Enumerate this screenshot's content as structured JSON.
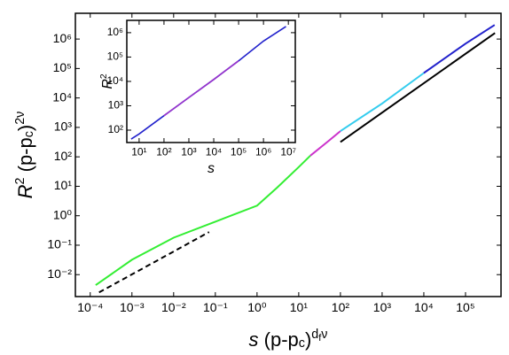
{
  "chart_data": [
    {
      "type": "line",
      "xlog": true,
      "ylog": true,
      "xlim": [
        4.4e-05,
        710000
      ],
      "ylim": [
        0.0018,
        7500000
      ],
      "xticks": [
        {
          "value": 0.0001,
          "label": "10⁻⁴"
        },
        {
          "value": 0.001,
          "label": "10⁻³"
        },
        {
          "value": 0.01,
          "label": "10⁻²"
        },
        {
          "value": 0.1,
          "label": "10⁻¹"
        },
        {
          "value": 1,
          "label": "10⁰"
        },
        {
          "value": 10,
          "label": "10¹"
        },
        {
          "value": 100,
          "label": "10²"
        },
        {
          "value": 1000,
          "label": "10³"
        },
        {
          "value": 10000,
          "label": "10⁴"
        },
        {
          "value": 100000,
          "label": "10⁵"
        }
      ],
      "yticks": [
        {
          "value": 0.01,
          "label": "10⁻²"
        },
        {
          "value": 0.1,
          "label": "10⁻¹"
        },
        {
          "value": 1,
          "label": "10⁰"
        },
        {
          "value": 10,
          "label": "10¹"
        },
        {
          "value": 100,
          "label": "10²"
        },
        {
          "value": 1000,
          "label": "10³"
        },
        {
          "value": 10000,
          "label": "10⁴"
        },
        {
          "value": 100000,
          "label": "10⁵"
        },
        {
          "value": 1000000,
          "label": "10⁶"
        }
      ],
      "xlabel": [
        "s",
        " (p-p",
        "c",
        ")",
        "d",
        "f",
        "ν"
      ],
      "ylabel": [
        "R",
        "2",
        " (p-p",
        "c",
        ")",
        "2ν"
      ],
      "series": [
        {
          "color": "#33ee33",
          "x": [
            0.000135,
            0.001,
            0.01,
            0.1,
            1,
            3,
            10,
            19
          ],
          "values": [
            0.0044,
            0.032,
            0.18,
            0.63,
            2.2,
            8.9,
            45,
            110
          ]
        },
        {
          "color": "#cc33cc",
          "x": [
            19,
            50,
            100
          ],
          "values": [
            110,
            330,
            750
          ]
        },
        {
          "color": "#33ccee",
          "x": [
            100,
            1000,
            10000
          ],
          "values": [
            750,
            6500,
            70000
          ]
        },
        {
          "color": "#2222cc",
          "x": [
            10000,
            100000,
            500000
          ],
          "values": [
            70000,
            700000,
            3000000
          ]
        },
        {
          "color": "#000000",
          "x": [
            100,
            510000
          ],
          "values": [
            320,
            1600000
          ]
        },
        {
          "color": "#000000",
          "linestyle": "dashed",
          "x": [
            0.000163,
            0.071
          ],
          "values": [
            0.0025,
            0.28
          ]
        }
      ]
    },
    {
      "type": "line",
      "xlog": true,
      "ylog": true,
      "xlim": [
        3.2,
        19000000
      ],
      "ylim": [
        31,
        3200000
      ],
      "xticks": [
        {
          "value": 10,
          "label": "10¹"
        },
        {
          "value": 100,
          "label": "10²"
        },
        {
          "value": 1000,
          "label": "10³"
        },
        {
          "value": 10000,
          "label": "10⁴"
        },
        {
          "value": 100000,
          "label": "10⁵"
        },
        {
          "value": 1000000,
          "label": "10⁶"
        },
        {
          "value": 10000000,
          "label": "10⁷"
        }
      ],
      "yticks": [
        {
          "value": 100,
          "label": "10²"
        },
        {
          "value": 1000,
          "label": "10³"
        },
        {
          "value": 10000,
          "label": "10⁴"
        },
        {
          "value": 100000,
          "label": "10⁵"
        },
        {
          "value": 1000000,
          "label": "10⁶"
        }
      ],
      "xlabel": [
        "s"
      ],
      "ylabel": [
        "R",
        "2"
      ],
      "series": [
        {
          "color": "#2222cc",
          "x": [
            4.8,
            10,
            100,
            1000,
            10000,
            100000,
            1000000,
            8000000
          ],
          "values": [
            43,
            70,
            390,
            2200,
            12000,
            70000,
            450000,
            1800000
          ]
        },
        {
          "color": "#9933cc",
          "x": [
            100,
            1000,
            10000,
            100000
          ],
          "values": [
            390,
            2200,
            12000,
            70000
          ]
        }
      ]
    }
  ]
}
